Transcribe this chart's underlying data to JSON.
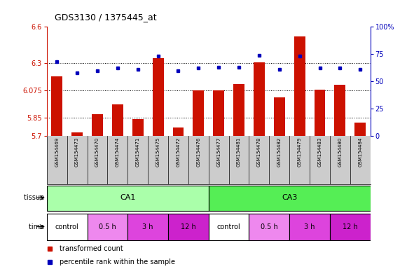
{
  "title": "GDS3130 / 1375445_at",
  "samples": [
    "GSM154469",
    "GSM154473",
    "GSM154470",
    "GSM154474",
    "GSM154471",
    "GSM154475",
    "GSM154472",
    "GSM154476",
    "GSM154477",
    "GSM154481",
    "GSM154478",
    "GSM154482",
    "GSM154479",
    "GSM154483",
    "GSM154480",
    "GSM154484"
  ],
  "bar_values": [
    6.19,
    5.73,
    5.88,
    5.96,
    5.84,
    6.34,
    5.77,
    6.075,
    6.075,
    6.13,
    6.31,
    6.02,
    6.52,
    6.08,
    6.12,
    5.81
  ],
  "dot_values": [
    68,
    58,
    60,
    62,
    61,
    73,
    60,
    62,
    63,
    63,
    74,
    61,
    73,
    62,
    62,
    61
  ],
  "ylim_left": [
    5.7,
    6.6
  ],
  "ylim_right": [
    0,
    100
  ],
  "yticks_left": [
    5.7,
    5.85,
    6.075,
    6.3,
    6.6
  ],
  "ytick_labels_left": [
    "5.7",
    "5.85",
    "6.075",
    "6.3",
    "6.6"
  ],
  "yticks_right": [
    0,
    25,
    50,
    75,
    100
  ],
  "ytick_labels_right": [
    "0",
    "25",
    "50",
    "75",
    "100%"
  ],
  "hlines": [
    5.85,
    6.075,
    6.3
  ],
  "bar_color": "#cc1100",
  "dot_color": "#0000bb",
  "background_color": "#ffffff",
  "tissue_label": "tissue",
  "time_label": "time",
  "tissue_groups": [
    {
      "label": "CA1",
      "start": 0,
      "end": 8,
      "color": "#aaffaa"
    },
    {
      "label": "CA3",
      "start": 8,
      "end": 16,
      "color": "#55ee55"
    }
  ],
  "time_groups": [
    {
      "label": "control",
      "start": 0,
      "end": 2,
      "color": "#ffffff"
    },
    {
      "label": "0.5 h",
      "start": 2,
      "end": 4,
      "color": "#ee88ee"
    },
    {
      "label": "3 h",
      "start": 4,
      "end": 6,
      "color": "#dd44dd"
    },
    {
      "label": "12 h",
      "start": 6,
      "end": 8,
      "color": "#cc22cc"
    },
    {
      "label": "control",
      "start": 8,
      "end": 10,
      "color": "#ffffff"
    },
    {
      "label": "0.5 h",
      "start": 10,
      "end": 12,
      "color": "#ee88ee"
    },
    {
      "label": "3 h",
      "start": 12,
      "end": 14,
      "color": "#dd44dd"
    },
    {
      "label": "12 h",
      "start": 14,
      "end": 16,
      "color": "#cc22cc"
    }
  ],
  "legend_bar_label": "transformed count",
  "legend_dot_label": "percentile rank within the sample",
  "left_axis_color": "#cc1100",
  "right_axis_color": "#0000bb",
  "xticklabel_bg": "#cccccc"
}
